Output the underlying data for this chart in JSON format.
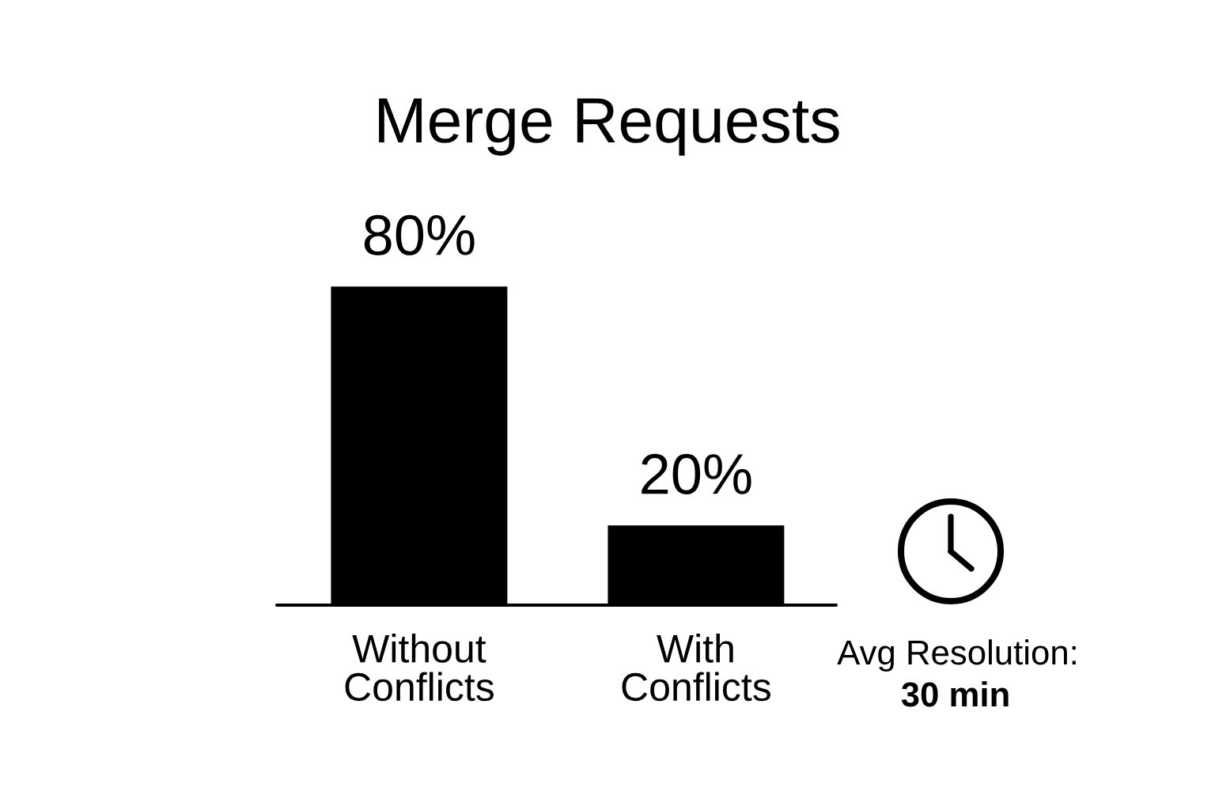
{
  "chart_data": {
    "type": "bar",
    "title": "Merge Requests",
    "categories": [
      "Without Conflicts",
      "With Conflicts"
    ],
    "values": [
      80,
      20
    ],
    "value_labels": [
      "80%",
      "20%"
    ],
    "color": "#000000",
    "annotations": [
      "Avg Resolution:",
      "30 min"
    ]
  }
}
